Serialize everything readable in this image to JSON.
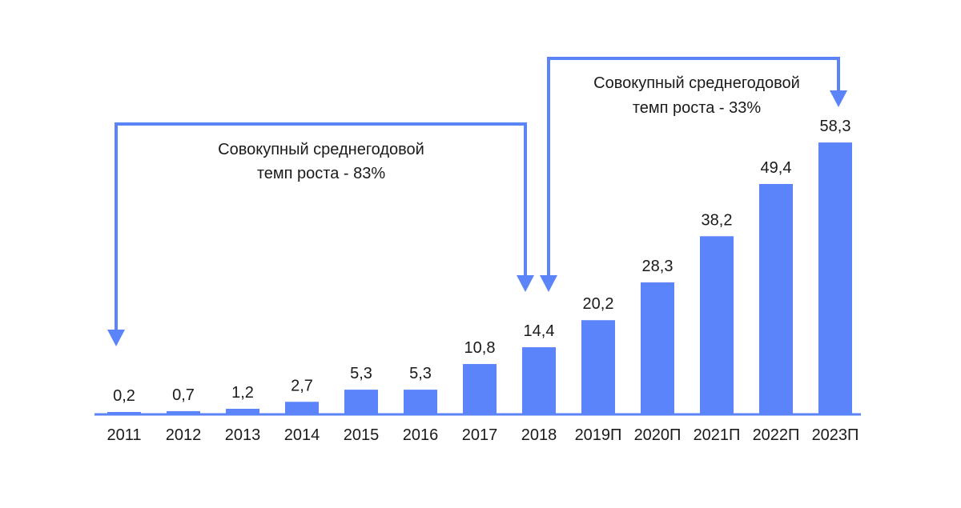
{
  "colors": {
    "bar": "#5b84fb",
    "axis": "#5b84fb",
    "arrow": "#5b84fb",
    "text": "#1a1a1a"
  },
  "chart_data": {
    "type": "bar",
    "title": "",
    "xlabel": "",
    "ylabel": "",
    "grid": false,
    "legend": "none",
    "ylim": [
      0,
      65
    ],
    "categories": [
      "2011",
      "2012",
      "2013",
      "2014",
      "2015",
      "2016",
      "2017",
      "2018",
      "2019П",
      "2020П",
      "2021П",
      "2022П",
      "2023П"
    ],
    "values": [
      0.2,
      0.7,
      1.2,
      2.7,
      5.3,
      5.3,
      10.8,
      14.4,
      20.2,
      28.3,
      38.2,
      49.4,
      58.3
    ],
    "value_labels": [
      "0,2",
      "0,7",
      "1,2",
      "2,7",
      "5,3",
      "5,3",
      "10,8",
      "14,4",
      "20,2",
      "28,3",
      "38,2",
      "49,4",
      "58,3"
    ],
    "annotations": [
      {
        "from_category": "2011",
        "to_category": "2018",
        "lines": [
          "Совокупный среднегодовой",
          "темп роста - 83%"
        ]
      },
      {
        "from_category": "2018",
        "to_category": "2023П",
        "lines": [
          "Совокупный среднегодовой",
          "темп роста - 33%"
        ]
      }
    ]
  }
}
